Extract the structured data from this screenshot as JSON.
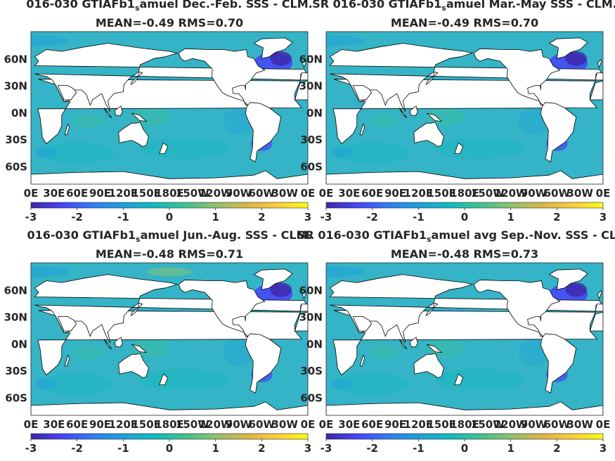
{
  "colors": {
    "colormap": [
      "#3e26a8",
      "#4743f8",
      "#2f7cf6",
      "#1fa0dc",
      "#0fbbbe",
      "#3fc28f",
      "#8cc26d",
      "#dcb449",
      "#f9cf3c",
      "#f9fb15"
    ],
    "ocean_base": "#34b4c6",
    "land": "#ffffff",
    "text": "#262626"
  },
  "panels": [
    {
      "title_left": "016-030 GTIAFb1",
      "title_sub": "s",
      "title_right": "amuel  Dec.-Feb. SSS - CLM.",
      "stats": "MEAN=-0.49   RMS=0.70",
      "season": "DJF"
    },
    {
      "title_left": "SR 016-030 GTIAFb1",
      "title_sub": "s",
      "title_right": "amuel Mar.-May SSS - CLM.",
      "stats": "MEAN=-0.49   RMS=0.70",
      "season": "MAM"
    },
    {
      "title_left": "016-030 GTIAFb1",
      "title_sub": "s",
      "title_right": "amuel Jun.-Aug. SSS - CLM.",
      "stats": "MEAN=-0.48   RMS=0.71",
      "season": "JJA"
    },
    {
      "title_left": "SR 016-030 GTIAFb1",
      "title_sub": "s",
      "title_right": "amuel avg Sep.-Nov. SSS - CLM.",
      "stats": "MEAN=-0.48   RMS=0.73",
      "season": "SON"
    }
  ],
  "chart_data": {
    "type": "heatmap",
    "y_tick_labels": [
      "60N",
      "30N",
      "0N",
      "30S",
      "60S"
    ],
    "y_ticks_lat": [
      60,
      30,
      0,
      -30,
      -60
    ],
    "x_tick_labels": [
      "0E",
      "30E",
      "60E",
      "90E",
      "120E",
      "150E",
      "180E",
      "150W",
      "120W",
      "90W",
      "60W",
      "30W",
      "0E"
    ],
    "x_ticks_lon": [
      0,
      30,
      60,
      90,
      120,
      150,
      180,
      210,
      240,
      270,
      300,
      330,
      360
    ],
    "colorbar_tick_labels": [
      "-3",
      "-2",
      "-1",
      "0",
      "1",
      "2",
      "3"
    ],
    "colorbar_range": [
      -3,
      3
    ],
    "lon_range": [
      0,
      360
    ],
    "lat_range": [
      -80,
      90
    ]
  }
}
